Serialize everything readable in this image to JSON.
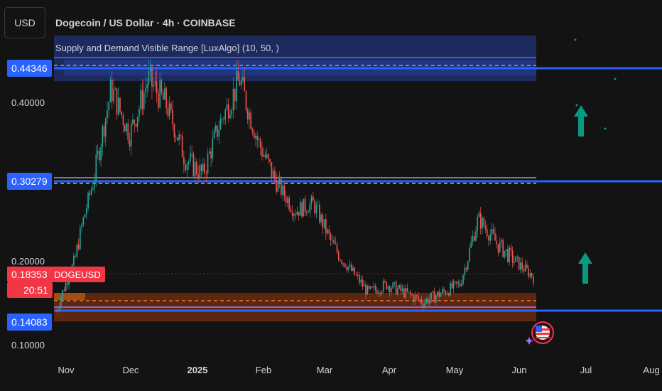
{
  "header": {
    "currency": "USD",
    "title": "Dogecoin / US Dollar · 4h · COINBASE",
    "indicator": "Supply and Demand Visible Range [LuxAlgo] (10, 50, )"
  },
  "y_axis": {
    "ticks": [
      "0.40000",
      "0.20000",
      "0.10000"
    ]
  },
  "price_labels": {
    "top_level": "0.44346",
    "mid_level": "0.30279",
    "current_price": "0.18353",
    "symbol": "DOGEUSD",
    "countdown": "20:51",
    "bottom_level": "0.14083"
  },
  "x_axis": {
    "ticks": [
      "Nov",
      "Dec",
      "2025",
      "Feb",
      "Mar",
      "Apr",
      "May",
      "Jun",
      "Jul",
      "Aug"
    ]
  },
  "colors": {
    "background": "#131313",
    "level_line": "#2962ff",
    "supply_zone": "#1e2f6b",
    "demand_zone": "#6b2a0e",
    "up_candle": "#26a69a",
    "down_candle": "#ef5350",
    "current_price": "#f23645",
    "arrow": "#089981"
  },
  "chart_data": {
    "type": "candlestick",
    "symbol": "DOGEUSD",
    "timeframe": "4h",
    "x": [
      "Nov",
      "Dec",
      "2025",
      "Feb",
      "Mar",
      "Apr",
      "May",
      "Jun"
    ],
    "close_path": [
      0.14,
      0.2,
      0.3,
      0.42,
      0.36,
      0.43,
      0.4,
      0.33,
      0.31,
      0.38,
      0.43,
      0.35,
      0.3,
      0.26,
      0.27,
      0.22,
      0.19,
      0.16,
      0.17,
      0.16,
      0.15,
      0.16,
      0.17,
      0.25,
      0.22,
      0.2,
      0.18
    ],
    "levels": [
      0.44346,
      0.30279,
      0.14083
    ],
    "current_price": 0.18353
  }
}
